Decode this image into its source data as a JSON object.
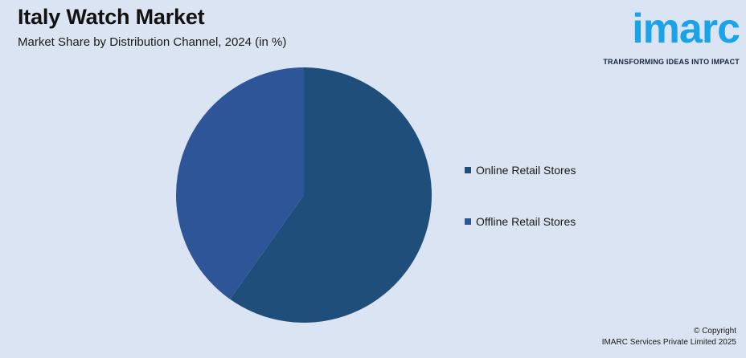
{
  "header": {
    "title": "Italy Watch Market",
    "subtitle": "Market Share by Distribution Channel, 2024 (in %)"
  },
  "logo": {
    "word": "imarc",
    "tagline": "TRANSFORMING IDEAS INTO IMPACT"
  },
  "chart_data": {
    "type": "pie",
    "title": "Italy Watch Market",
    "subtitle": "Market Share by Distribution Channel, 2024 (in %)",
    "categories": [
      "Online Retail Stores",
      "Offline Retail Stores"
    ],
    "values": [
      59.8,
      40.2
    ],
    "colors": [
      "#1f4e7a",
      "#2e5597"
    ],
    "legend_position": "right",
    "start_angle_deg": 0,
    "direction": "clockwise"
  },
  "footer": {
    "copyright_line1": "© Copyright",
    "copyright_line2": "IMARC Services Private Limited 2025"
  }
}
